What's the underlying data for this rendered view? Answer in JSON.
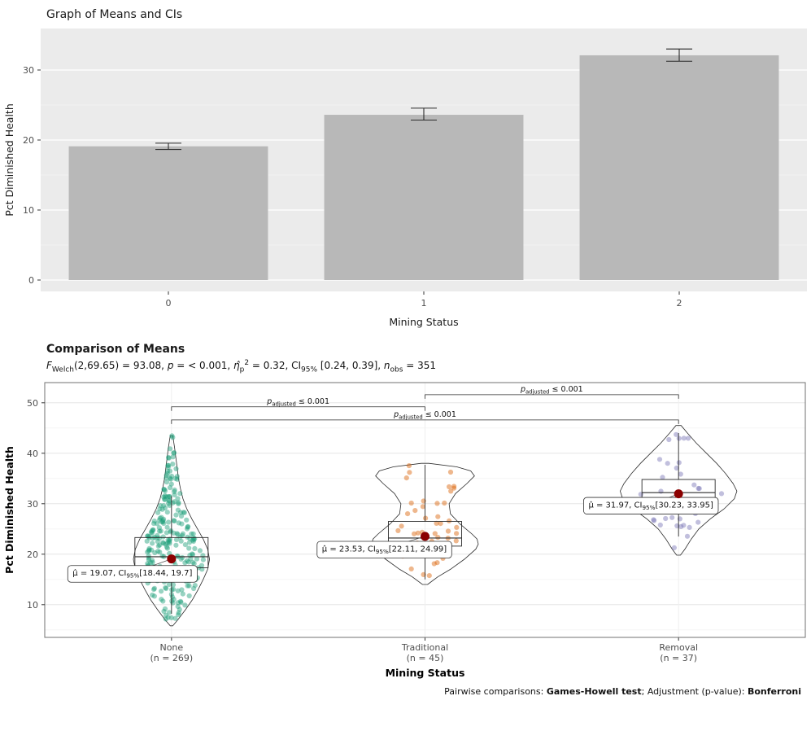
{
  "page": {
    "background": "#ffffff"
  },
  "chart_data": [
    {
      "type": "bar",
      "title": "Graph of Means and CIs",
      "xlabel": "Mining Status",
      "ylabel": "Pct Diminished Health",
      "categories": [
        "0",
        "1",
        "2"
      ],
      "values": [
        19.1,
        23.6,
        32.1
      ],
      "error_low": [
        18.65,
        22.85,
        31.25
      ],
      "error_high": [
        19.55,
        24.55,
        33.0
      ],
      "yticks": [
        0,
        10,
        20,
        30
      ],
      "ylim": [
        0,
        34.7
      ],
      "grid": true,
      "legend": false,
      "bar_color": "#b8b8b8",
      "panel_color": "#ebebeb"
    },
    {
      "type": "scatter",
      "subtype": "violin-box-jitter comparison of group means",
      "title": "Comparison of Means",
      "xlabel": "Mining Status",
      "ylabel": "Pct Diminished Health",
      "yticks": [
        10,
        20,
        30,
        40,
        50
      ],
      "stats": {
        "F_sub": "Welch",
        "F_df": "(2,69.65)",
        "F": 93.08,
        "p": "< 0.001",
        "eta2_p": 0.32,
        "eta2_ci": "[0.24, 0.39]",
        "n_obs": 351
      },
      "subtitle_segments": [
        {
          "t": "F",
          "i": 1
        },
        {
          "t": "Welch",
          "sub": 1
        },
        {
          "t": "(2,69.65) = 93.08, "
        },
        {
          "t": "p",
          "i": 1
        },
        {
          "t": " = < 0.001, "
        },
        {
          "t": "η̂",
          "i": 1
        },
        {
          "t": "p",
          "sub": 1
        },
        {
          "t": "2",
          "sup": 1
        },
        {
          "t": " = 0.32, CI"
        },
        {
          "t": "95%",
          "sub": 1
        },
        {
          "t": " [0.24, 0.39], "
        },
        {
          "t": "n",
          "i": 1
        },
        {
          "t": "obs",
          "sub": 1
        },
        {
          "t": " = 351"
        }
      ],
      "caption_segments": [
        {
          "t": "Pairwise comparisons: "
        },
        {
          "t": "Games-Howell test",
          "b": 1
        },
        {
          "t": "; Adjustment (p-value): "
        },
        {
          "t": "Bonferroni",
          "b": 1
        }
      ],
      "groups": [
        {
          "label": "None",
          "n_label": "(n = 269)",
          "n": 269,
          "color": "#1B9E77",
          "mean": 19.07,
          "ci_low": 18.44,
          "ci_high": 19.7,
          "mean_label_segments": [
            {
              "t": "μ̂ = 19.07, CI"
            },
            {
              "t": "95%",
              "sub": 1
            },
            {
              "t": "[18.44, 19.7]"
            }
          ],
          "box": {
            "lo": 8.2,
            "q1": 17.3,
            "median": 19.5,
            "q3": 23.3,
            "hi": 31.5
          },
          "violin_profile": [
            [
              5.8,
              0.02
            ],
            [
              7,
              0.1
            ],
            [
              9,
              0.22
            ],
            [
              11,
              0.33
            ],
            [
              13,
              0.42
            ],
            [
              15,
              0.5
            ],
            [
              17,
              0.57
            ],
            [
              19,
              0.6
            ],
            [
              21,
              0.57
            ],
            [
              23,
              0.5
            ],
            [
              25,
              0.41
            ],
            [
              27,
              0.32
            ],
            [
              29,
              0.24
            ],
            [
              31,
              0.18
            ],
            [
              33,
              0.14
            ],
            [
              35,
              0.11
            ],
            [
              38,
              0.08
            ],
            [
              41,
              0.05
            ],
            [
              43.5,
              0.02
            ]
          ],
          "label_anchor": {
            "dx": -48,
            "v": 16.3
          }
        },
        {
          "label": "Traditional",
          "n_label": "(n = 45)",
          "n": 45,
          "color": "#D95F02",
          "mean": 23.53,
          "ci_low": 22.11,
          "ci_high": 24.99,
          "mean_label_segments": [
            {
              "t": "μ̂ = 23.53, CI"
            },
            {
              "t": "95%",
              "sub": 1
            },
            {
              "t": "[22.11, 24.99]"
            }
          ],
          "box": {
            "lo": 15,
            "q1": 21.6,
            "median": 23.2,
            "q3": 26.5,
            "hi": 37.7
          },
          "violin_profile": [
            [
              14,
              0.04
            ],
            [
              15.5,
              0.2
            ],
            [
              17,
              0.4
            ],
            [
              19,
              0.62
            ],
            [
              21,
              0.8
            ],
            [
              22,
              0.84
            ],
            [
              23,
              0.82
            ],
            [
              24,
              0.74
            ],
            [
              26,
              0.55
            ],
            [
              28,
              0.4
            ],
            [
              30,
              0.38
            ],
            [
              32,
              0.48
            ],
            [
              34,
              0.66
            ],
            [
              35.5,
              0.78
            ],
            [
              36.5,
              0.72
            ],
            [
              37.3,
              0.5
            ],
            [
              38,
              0.06
            ]
          ],
          "label_anchor": {
            "dx": -50,
            "v": 21.1
          }
        },
        {
          "label": "Removal",
          "n_label": "(n = 37)",
          "n": 37,
          "color": "#7570B3",
          "mean": 31.97,
          "ci_low": 30.23,
          "ci_high": 33.95,
          "mean_label_segments": [
            {
              "t": "μ̂ = 31.97, CI"
            },
            {
              "t": "95%",
              "sub": 1
            },
            {
              "t": "[30.23, 33.95]"
            }
          ],
          "box": {
            "lo": 23.5,
            "q1": 29.3,
            "median": 32.2,
            "q3": 34.8,
            "hi": 44
          },
          "violin_profile": [
            [
              19.8,
              0.03
            ],
            [
              21,
              0.1
            ],
            [
              23,
              0.2
            ],
            [
              25,
              0.32
            ],
            [
              27,
              0.5
            ],
            [
              29,
              0.72
            ],
            [
              31,
              0.88
            ],
            [
              32.5,
              0.92
            ],
            [
              34,
              0.86
            ],
            [
              36,
              0.74
            ],
            [
              38,
              0.6
            ],
            [
              40,
              0.44
            ],
            [
              42,
              0.28
            ],
            [
              44,
              0.14
            ],
            [
              45.5,
              0.04
            ]
          ],
          "label_anchor": {
            "dx": -34,
            "v": 29.8
          }
        }
      ],
      "comparisons": [
        {
          "group_a": 1,
          "group_b": 2,
          "v": 51.6,
          "label_segments": [
            {
              "t": "p",
              "i": 1
            },
            {
              "t": "adjusted",
              "sub": 1
            },
            {
              "t": " ≤ 0.001"
            }
          ]
        },
        {
          "group_a": 0,
          "group_b": 1,
          "v": 49.2,
          "label_segments": [
            {
              "t": "p",
              "i": 1
            },
            {
              "t": "adjusted",
              "sub": 1
            },
            {
              "t": " ≤ 0.001"
            }
          ]
        },
        {
          "group_a": 0,
          "group_b": 2,
          "v": 46.6,
          "label_segments": [
            {
              "t": "p",
              "i": 1
            },
            {
              "t": "adjusted",
              "sub": 1
            },
            {
              "t": " ≤ 0.001"
            }
          ]
        }
      ],
      "mean_point_color": "#8b0000"
    }
  ]
}
